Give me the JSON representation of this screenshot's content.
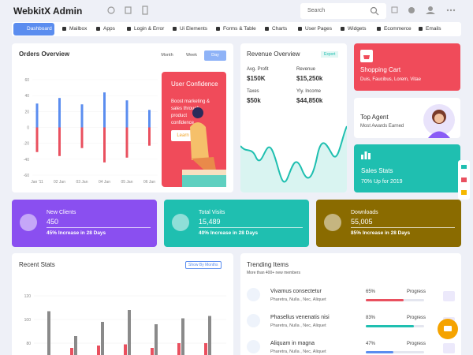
{
  "header": {
    "brand": "WebkitX Admin",
    "search_placeholder": "Search"
  },
  "nav": [
    "Dashboard",
    "Mailbox",
    "Apps",
    "Login & Error",
    "Ui Elements",
    "Forms & Table",
    "Charts",
    "User Pages",
    "Widgets",
    "Ecommerce",
    "Emails"
  ],
  "orders": {
    "title": "Orders Overview",
    "tabs": [
      "Month",
      "Week",
      "Day"
    ],
    "chart": {
      "type": "bar",
      "categories": [
        "Jan '11",
        "02 Jan",
        "03 Jan",
        "04 Jan",
        "05 Jan",
        "06 Jan"
      ],
      "series": [
        {
          "color": "#5b8def",
          "values": [
            30,
            37,
            29,
            44,
            34,
            22
          ]
        },
        {
          "color": "#e9505f",
          "values": [
            -31,
            -36,
            -26,
            -44,
            -38,
            -23
          ]
        }
      ],
      "ylim": [
        -60,
        60
      ],
      "yticks": [
        60,
        40,
        20,
        0,
        -20,
        -40,
        -60
      ]
    },
    "promo": {
      "title": "User Confidence",
      "text": "Boost marketing & sales through product confidence.",
      "button": "Learn"
    }
  },
  "revenue": {
    "title": "Revenue Overview",
    "badge": "Export",
    "stats": [
      {
        "label": "Avg. Profit",
        "value": "$150K"
      },
      {
        "label": "Revenue",
        "value": "$15,250k"
      },
      {
        "label": "Taxes",
        "value": "$50k"
      },
      {
        "label": "Yly. Income",
        "value": "$44,850k"
      }
    ]
  },
  "shopping": {
    "title": "Shopping Cart",
    "text": "Duis, Faucibus, Lorem, Vitae"
  },
  "agent": {
    "title": "Top Agent",
    "text": "Most Awards Earned"
  },
  "sales": {
    "title": "Sales Stats",
    "text": "70% Up for 2019"
  },
  "kpis": [
    {
      "title": "New Clients",
      "value": "450",
      "text": "45% Increase in 28 Days"
    },
    {
      "title": "Total Visits",
      "value": "15,489",
      "text": "40% Increase in 28 Days"
    },
    {
      "title": "Downloads",
      "value": "55,005",
      "text": "85% Increase in 28 Days"
    }
  ],
  "recent": {
    "title": "Recent Stats",
    "button": "Show By Months",
    "chart": {
      "type": "bar",
      "series": [
        {
          "color": "#8a8a8a",
          "values": [
            107,
            86,
            98,
            108,
            96,
            101,
            103
          ]
        },
        {
          "color": "#e9505f",
          "values": [
            76,
            78,
            79,
            76,
            80,
            80
          ]
        }
      ],
      "ylim": [
        70,
        124
      ],
      "yticks": [
        120,
        100,
        80
      ]
    }
  },
  "trending": {
    "title": "Trending Items",
    "subtitle": "More than 400+ new members",
    "items": [
      {
        "name": "Vivamus consectetur",
        "meta": "Pharetra, Nulla , Nec, Aliquet",
        "percent": 65,
        "percent_label": "65%",
        "label": "Progress",
        "color": "#e9505f"
      },
      {
        "name": "Phasellus venenatis nisi",
        "meta": "Pharetra, Nulla , Nec, Aliquet",
        "percent": 83,
        "percent_label": "83%",
        "label": "Progress",
        "color": "#1fbfb0"
      },
      {
        "name": "Aliquam in magna",
        "meta": "Pharetra, Nulla , Nec, Aliquet",
        "percent": 47,
        "percent_label": "47%",
        "label": "Progress",
        "color": "#5b8def"
      }
    ]
  }
}
